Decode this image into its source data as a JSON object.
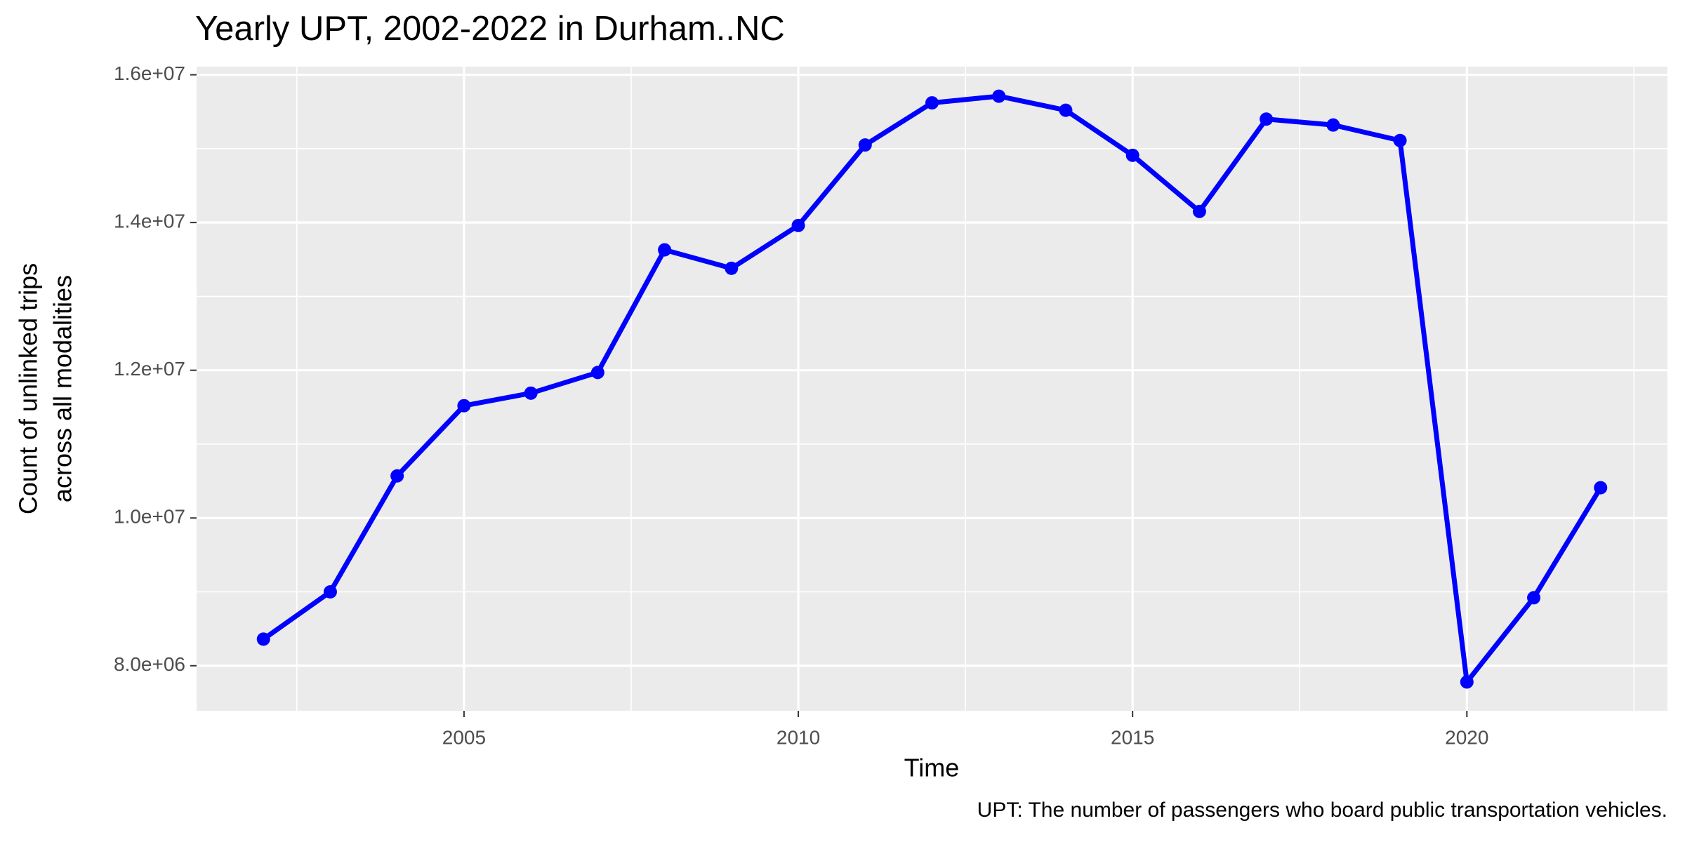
{
  "chart_data": {
    "type": "line",
    "title": "Yearly UPT, 2002-2022 in Durham..NC",
    "xlabel": "Time",
    "ylabel": [
      "Count of unlinked trips",
      "across all modalities"
    ],
    "caption": "UPT: The number of passengers who board public transportation vehicles.",
    "x": [
      2002,
      2003,
      2004,
      2005,
      2006,
      2007,
      2008,
      2009,
      2010,
      2011,
      2012,
      2013,
      2014,
      2015,
      2016,
      2017,
      2018,
      2019,
      2020,
      2021,
      2022
    ],
    "values": [
      8360000,
      9000000,
      10570000,
      11520000,
      11690000,
      11970000,
      13630000,
      13380000,
      13960000,
      15050000,
      15620000,
      15710000,
      15520000,
      14910000,
      14150000,
      15400000,
      15320000,
      15110000,
      7780000,
      8920000,
      10410000
    ],
    "color": "#0000ff",
    "xlim": [
      2001,
      2023
    ],
    "xticks": [
      2005,
      2010,
      2015,
      2020
    ],
    "ylim": [
      7390000,
      16110000
    ],
    "yticks": [
      {
        "value": 8000000,
        "label": "8.0e+06"
      },
      {
        "value": 10000000,
        "label": "1.0e+07"
      },
      {
        "value": 12000000,
        "label": "1.2e+07"
      },
      {
        "value": 14000000,
        "label": "1.4e+07"
      },
      {
        "value": 16000000,
        "label": "1.6e+07"
      }
    ],
    "grid": true
  }
}
